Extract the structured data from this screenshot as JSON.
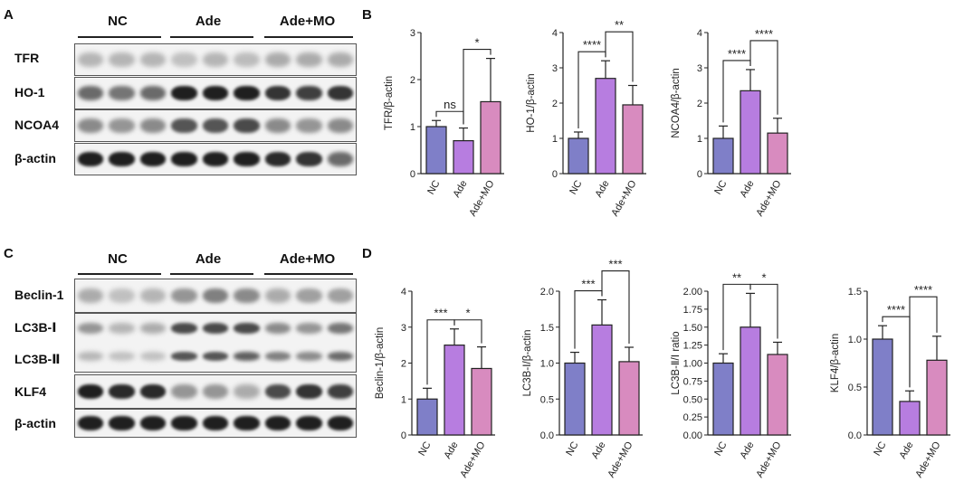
{
  "panels": {
    "a": "A",
    "b": "B",
    "c": "C",
    "d": "D"
  },
  "blots": {
    "top": {
      "groups": [
        "NC",
        "Ade",
        "Ade+MO"
      ],
      "rows": [
        {
          "label": "TFR",
          "intensity": [
            0.25,
            0.25,
            0.25,
            0.2,
            0.25,
            0.22,
            0.3,
            0.3,
            0.3
          ]
        },
        {
          "label": "HO-1",
          "intensity": [
            0.6,
            0.55,
            0.6,
            0.95,
            0.95,
            0.95,
            0.85,
            0.8,
            0.85
          ]
        },
        {
          "label": "NCOA4",
          "intensity": [
            0.45,
            0.4,
            0.45,
            0.7,
            0.7,
            0.75,
            0.45,
            0.4,
            0.45
          ]
        },
        {
          "label": "β-actin",
          "intensity": [
            0.95,
            0.95,
            0.95,
            0.95,
            0.95,
            0.95,
            0.9,
            0.85,
            0.6
          ]
        }
      ]
    },
    "bottom": {
      "groups": [
        "NC",
        "Ade",
        "Ade+MO"
      ],
      "rows": [
        {
          "label": "Beclin-1",
          "intensity": [
            0.3,
            0.2,
            0.25,
            0.4,
            0.5,
            0.45,
            0.3,
            0.35,
            0.35
          ]
        },
        {
          "label": "LC3B-Ⅰ",
          "label2": "LC3B-Ⅱ",
          "intensity": [
            0.4,
            0.25,
            0.3,
            0.75,
            0.75,
            0.75,
            0.45,
            0.4,
            0.55
          ],
          "intensity2": [
            0.25,
            0.2,
            0.2,
            0.7,
            0.7,
            0.65,
            0.5,
            0.45,
            0.6
          ]
        },
        {
          "label": "KLF4",
          "intensity": [
            0.95,
            0.9,
            0.9,
            0.4,
            0.4,
            0.3,
            0.75,
            0.85,
            0.8
          ]
        },
        {
          "label": "β-actin",
          "intensity": [
            0.95,
            0.95,
            0.95,
            0.95,
            0.95,
            0.95,
            0.95,
            0.95,
            0.95
          ]
        }
      ]
    }
  },
  "colors": {
    "nc": "#7f7fc8",
    "ade": "#b77de0",
    "ademo": "#d88bbf"
  },
  "chart_data": [
    {
      "type": "bar",
      "categories": [
        "NC",
        "Ade",
        "Ade+MO"
      ],
      "values": [
        1.0,
        0.7,
        1.53
      ],
      "errors": [
        0.13,
        0.27,
        0.92
      ],
      "ylabel": "TFR/β-actin",
      "ylim": [
        0,
        3
      ],
      "yticks": [
        "0",
        "1",
        "2",
        "3"
      ],
      "brackets": [
        {
          "from": 0,
          "to": 1,
          "label": "ns",
          "level": 0
        },
        {
          "from": 1,
          "to": 2,
          "label": "*",
          "level": 0
        }
      ]
    },
    {
      "type": "bar",
      "categories": [
        "NC",
        "Ade",
        "Ade+MO"
      ],
      "values": [
        1.0,
        2.7,
        1.95
      ],
      "errors": [
        0.18,
        0.5,
        0.55
      ],
      "ylabel": "HO-1/β-actin",
      "ylim": [
        0,
        4
      ],
      "yticks": [
        "0",
        "1",
        "2",
        "3",
        "4"
      ],
      "brackets": [
        {
          "from": 0,
          "to": 1,
          "label": "****",
          "level": 0
        },
        {
          "from": 1,
          "to": 2,
          "label": "**",
          "level": 1
        }
      ]
    },
    {
      "type": "bar",
      "categories": [
        "NC",
        "Ade",
        "Ade+MO"
      ],
      "values": [
        1.0,
        2.35,
        1.15
      ],
      "errors": [
        0.35,
        0.6,
        0.42
      ],
      "ylabel": "NCOA4/β-actin",
      "ylim": [
        0,
        4
      ],
      "yticks": [
        "0",
        "1",
        "2",
        "3",
        "4"
      ],
      "brackets": [
        {
          "from": 0,
          "to": 1,
          "label": "****",
          "level": 0
        },
        {
          "from": 1,
          "to": 2,
          "label": "****",
          "level": 1
        }
      ]
    },
    {
      "type": "bar",
      "categories": [
        "NC",
        "Ade",
        "Ade+MO"
      ],
      "values": [
        1.0,
        2.5,
        1.85
      ],
      "errors": [
        0.3,
        0.45,
        0.6
      ],
      "ylabel": "Beclin-1/β-actin",
      "ylim": [
        0,
        4
      ],
      "yticks": [
        "0",
        "1",
        "2",
        "3",
        "4"
      ],
      "brackets": [
        {
          "from": 0,
          "to": 1,
          "label": "***",
          "level": 0
        },
        {
          "from": 1,
          "to": 2,
          "label": "*",
          "level": 0
        }
      ]
    },
    {
      "type": "bar",
      "categories": [
        "NC",
        "Ade",
        "Ade+MO"
      ],
      "values": [
        1.0,
        1.53,
        1.02
      ],
      "errors": [
        0.15,
        0.35,
        0.2
      ],
      "ylabel": "LC3B-Ⅰ/β-actin",
      "ylim": [
        0,
        2.0
      ],
      "yticks": [
        "0.0",
        "0.5",
        "1.0",
        "1.5",
        "2.0"
      ],
      "brackets": [
        {
          "from": 0,
          "to": 1,
          "label": "***",
          "level": 0
        },
        {
          "from": 1,
          "to": 2,
          "label": "***",
          "level": 1
        }
      ]
    },
    {
      "type": "bar",
      "categories": [
        "NC",
        "Ade",
        "Ade+MO"
      ],
      "values": [
        1.0,
        1.5,
        1.12
      ],
      "errors": [
        0.13,
        0.47,
        0.17
      ],
      "ylabel": "LC3B-Ⅱ/Ⅰ ratio",
      "ylim": [
        0,
        2.0
      ],
      "yticks": [
        "0.00",
        "0.25",
        "0.50",
        "0.75",
        "1.00",
        "1.25",
        "1.50",
        "1.75",
        "2.00"
      ],
      "brackets": [
        {
          "from": 0,
          "to": 1,
          "label": "**",
          "level": 0
        },
        {
          "from": 1,
          "to": 2,
          "label": "*",
          "level": 0
        }
      ]
    },
    {
      "type": "bar",
      "categories": [
        "NC",
        "Ade",
        "Ade+MO"
      ],
      "values": [
        1.0,
        0.35,
        0.78
      ],
      "errors": [
        0.14,
        0.11,
        0.25
      ],
      "ylabel": "KLF4/β-actin",
      "ylim": [
        0,
        1.5
      ],
      "yticks": [
        "0.0",
        "0.5",
        "1.0",
        "1.5"
      ],
      "brackets": [
        {
          "from": 0,
          "to": 1,
          "label": "****",
          "level": 0
        },
        {
          "from": 1,
          "to": 2,
          "label": "****",
          "level": 1
        }
      ]
    }
  ]
}
